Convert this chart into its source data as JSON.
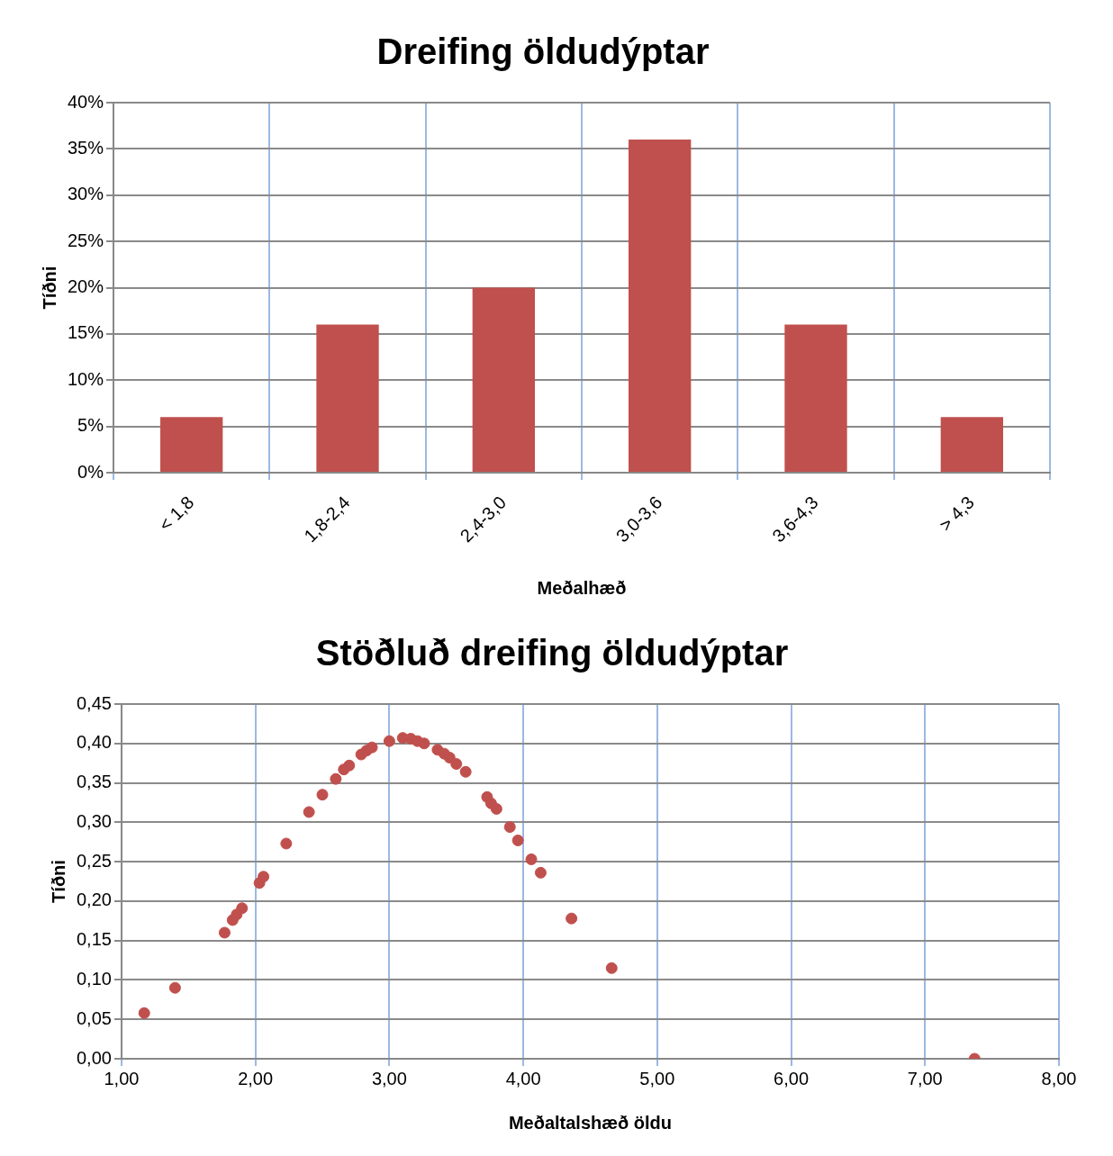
{
  "chart_data": [
    {
      "type": "bar",
      "title": "Dreifing öldudýptar",
      "xlabel": "Meðalhæð",
      "ylabel": "Tíðni",
      "categories": [
        "< 1,8",
        "1,8-2,4",
        "2,4-3,0",
        "3,0-3,6",
        "3,6-4,3",
        "> 4,3"
      ],
      "values": [
        6,
        16,
        20,
        36,
        16,
        6
      ],
      "color": "#c0504d",
      "ylim": [
        0,
        40
      ],
      "yticks": [
        {
          "value": 0,
          "label": "0%"
        },
        {
          "value": 5,
          "label": "5%"
        },
        {
          "value": 10,
          "label": "10%"
        },
        {
          "value": 15,
          "label": "15%"
        },
        {
          "value": 20,
          "label": "20%"
        },
        {
          "value": 25,
          "label": "25%"
        },
        {
          "value": 30,
          "label": "30%"
        },
        {
          "value": 35,
          "label": "35%"
        },
        {
          "value": 40,
          "label": "40%"
        }
      ],
      "grid": true
    },
    {
      "type": "scatter",
      "title": "Stöðluð dreifing öldudýptar",
      "xlabel": "Meðaltalshæð öldu",
      "ylabel": "Tíðni",
      "x": [
        1.17,
        1.4,
        1.77,
        1.83,
        1.86,
        1.9,
        2.03,
        2.06,
        2.23,
        2.4,
        2.5,
        2.6,
        2.66,
        2.7,
        2.79,
        2.83,
        2.87,
        3.0,
        3.1,
        3.16,
        3.21,
        3.26,
        3.36,
        3.41,
        3.45,
        3.5,
        3.57,
        3.73,
        3.76,
        3.8,
        3.9,
        3.96,
        4.06,
        4.13,
        4.36,
        4.66,
        7.37
      ],
      "values": [
        0.058,
        0.09,
        0.16,
        0.176,
        0.183,
        0.191,
        0.223,
        0.231,
        0.273,
        0.313,
        0.335,
        0.355,
        0.367,
        0.372,
        0.386,
        0.391,
        0.395,
        0.403,
        0.407,
        0.406,
        0.403,
        0.4,
        0.392,
        0.387,
        0.382,
        0.374,
        0.364,
        0.332,
        0.324,
        0.317,
        0.294,
        0.277,
        0.253,
        0.236,
        0.178,
        0.115,
        0.0
      ],
      "color": "#c0504d",
      "marker": "circle",
      "xlim": [
        1,
        8
      ],
      "xticks": [
        {
          "value": 1,
          "label": "1,00"
        },
        {
          "value": 2,
          "label": "2,00"
        },
        {
          "value": 3,
          "label": "3,00"
        },
        {
          "value": 4,
          "label": "4,00"
        },
        {
          "value": 5,
          "label": "5,00"
        },
        {
          "value": 6,
          "label": "6,00"
        },
        {
          "value": 7,
          "label": "7,00"
        },
        {
          "value": 8,
          "label": "8,00"
        }
      ],
      "ylim": [
        0,
        0.45
      ],
      "yticks": [
        {
          "value": 0,
          "label": "0,00"
        },
        {
          "value": 0.05,
          "label": "0,05"
        },
        {
          "value": 0.1,
          "label": "0,10"
        },
        {
          "value": 0.15,
          "label": "0,15"
        },
        {
          "value": 0.2,
          "label": "0,20"
        },
        {
          "value": 0.25,
          "label": "0,25"
        },
        {
          "value": 0.3,
          "label": "0,30"
        },
        {
          "value": 0.35,
          "label": "0,35"
        },
        {
          "value": 0.4,
          "label": "0,40"
        },
        {
          "value": 0.45,
          "label": "0,45"
        }
      ],
      "grid": true
    }
  ]
}
